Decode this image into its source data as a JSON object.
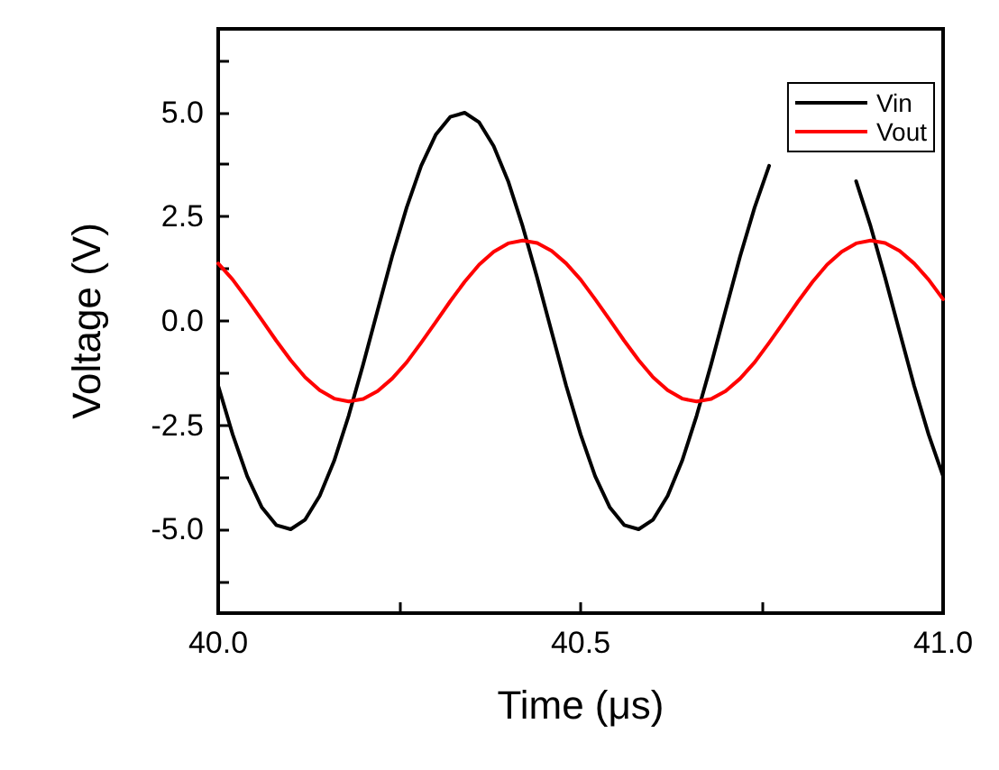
{
  "chart_data": {
    "type": "line",
    "xlabel": "Time (μs)",
    "ylabel": "Voltage (V)",
    "x": [
      40.0,
      40.02,
      40.04,
      40.06,
      40.08,
      40.1,
      40.12,
      40.14,
      40.16,
      40.18,
      40.2,
      40.22,
      40.24,
      40.26,
      40.28,
      40.3,
      40.32,
      40.34,
      40.36,
      40.38,
      40.4,
      40.42,
      40.44,
      40.46,
      40.48,
      40.5,
      40.52,
      40.54,
      40.56,
      40.58,
      40.6,
      40.62,
      40.64,
      40.66,
      40.68,
      40.7,
      40.72,
      40.74,
      40.76,
      40.78,
      40.8,
      40.82,
      40.84,
      40.86,
      40.88,
      40.9,
      40.92,
      40.94,
      40.96,
      40.98,
      41.0
    ],
    "series": [
      {
        "name": "Vin",
        "color": "#000000",
        "values": [
          -1.55,
          -2.72,
          -3.72,
          -4.46,
          -4.89,
          -4.99,
          -4.76,
          -4.19,
          -3.35,
          -2.27,
          -1.04,
          0.26,
          1.55,
          2.72,
          3.72,
          4.46,
          4.89,
          4.99,
          4.76,
          4.19,
          3.35,
          2.27,
          1.04,
          -0.26,
          -1.55,
          -2.72,
          -3.72,
          -4.46,
          -4.89,
          -4.99,
          -4.76,
          -4.19,
          -3.35,
          -2.27,
          -1.04,
          0.26,
          1.55,
          2.72,
          3.72,
          null,
          null,
          null,
          null,
          null,
          3.35,
          2.27,
          1.04,
          -0.26,
          -1.55,
          -2.72,
          -3.72
        ]
      },
      {
        "name": "Vout",
        "color": "#ff0000",
        "values": [
          1.38,
          0.99,
          0.52,
          0.03,
          -0.47,
          -0.94,
          -1.35,
          -1.66,
          -1.86,
          -1.93,
          -1.87,
          -1.68,
          -1.38,
          -0.99,
          -0.52,
          -0.03,
          0.47,
          0.94,
          1.35,
          1.66,
          1.86,
          1.93,
          1.87,
          1.68,
          1.38,
          0.99,
          0.52,
          0.03,
          -0.47,
          -0.94,
          -1.35,
          -1.66,
          -1.86,
          -1.93,
          -1.87,
          -1.68,
          -1.38,
          -0.99,
          -0.52,
          -0.03,
          0.47,
          0.94,
          1.35,
          1.66,
          1.86,
          1.93,
          1.87,
          1.68,
          1.38,
          0.99,
          0.52
        ]
      }
    ],
    "xlim": [
      40,
      41
    ],
    "xticks": [
      {
        "value": 40,
        "label": "40.0"
      },
      {
        "value": 40.25,
        "label": null
      },
      {
        "value": 40.5,
        "label": "40.5"
      },
      {
        "value": 40.75,
        "label": null
      },
      {
        "value": 41,
        "label": "41.0"
      }
    ],
    "ylim": [
      -7,
      7
    ],
    "yticks": [
      {
        "value": -6.25,
        "label": null
      },
      {
        "value": -5,
        "label": "-5.0"
      },
      {
        "value": -3.75,
        "label": null
      },
      {
        "value": -2.5,
        "label": "-2.5"
      },
      {
        "value": -1.25,
        "label": null
      },
      {
        "value": 0,
        "label": "0.0"
      },
      {
        "value": 1.25,
        "label": null
      },
      {
        "value": 2.5,
        "label": "2.5"
      },
      {
        "value": 3.75,
        "label": null
      },
      {
        "value": 5,
        "label": "5.0"
      },
      {
        "value": 6.25,
        "label": null
      }
    ],
    "grid": false,
    "legend": "top right",
    "marker": "none",
    "line_style": "solid"
  }
}
